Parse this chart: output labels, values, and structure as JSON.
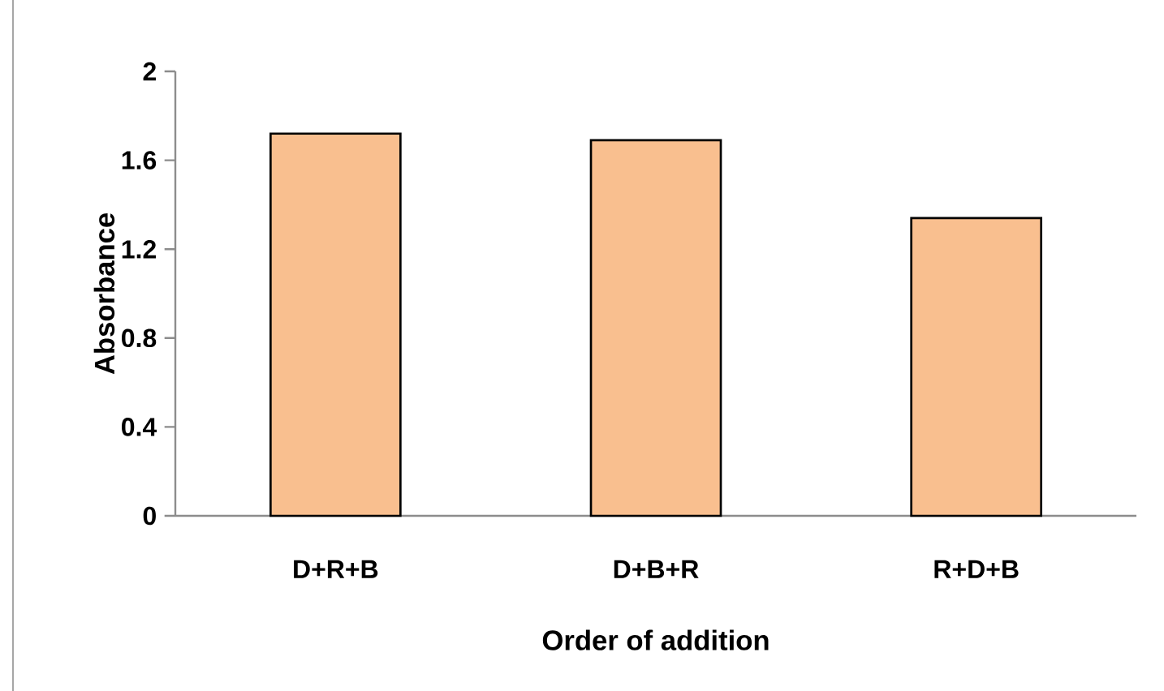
{
  "chart_data": {
    "type": "bar",
    "xlabel": "Order of addition",
    "ylabel": "Absorbance",
    "categories": [
      "D+R+B",
      "D+B+R",
      "R+D+B"
    ],
    "values": [
      1.72,
      1.69,
      1.34
    ],
    "color": "#f9bf8f",
    "ylim": [
      0,
      2
    ],
    "yticks": [
      0,
      0.4,
      0.8,
      1.2,
      1.6,
      2
    ],
    "grid": false
  }
}
